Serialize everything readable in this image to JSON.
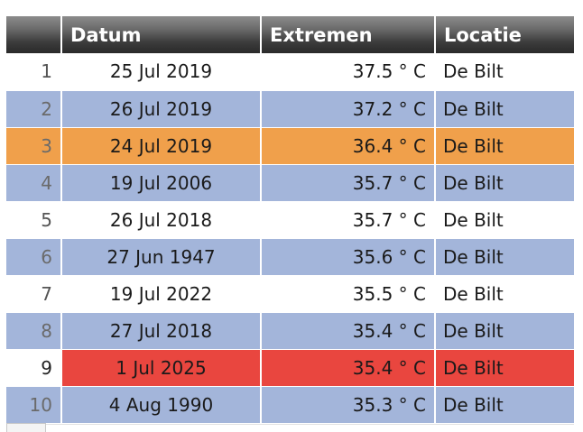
{
  "headers": {
    "num": "",
    "date": "Datum",
    "extreme": "Extremen",
    "location": "Locatie"
  },
  "rows": [
    {
      "n": "1",
      "date": "25 Jul 2019",
      "temp": "37.5 ° C",
      "loc": "De Bilt",
      "style": "white"
    },
    {
      "n": "2",
      "date": "26 Jul 2019",
      "temp": "37.2 ° C",
      "loc": "De Bilt",
      "style": "blue"
    },
    {
      "n": "3",
      "date": "24 Jul 2019",
      "temp": "36.4 ° C",
      "loc": "De Bilt",
      "style": "orange"
    },
    {
      "n": "4",
      "date": "19 Jul 2006",
      "temp": "35.7 ° C",
      "loc": "De Bilt",
      "style": "blue"
    },
    {
      "n": "5",
      "date": "26 Jul 2018",
      "temp": "35.7 ° C",
      "loc": "De Bilt",
      "style": "white"
    },
    {
      "n": "6",
      "date": "27 Jun 1947",
      "temp": "35.6 ° C",
      "loc": "De Bilt",
      "style": "blue"
    },
    {
      "n": "7",
      "date": "19 Jul 2022",
      "temp": "35.5 ° C",
      "loc": "De Bilt",
      "style": "white"
    },
    {
      "n": "8",
      "date": "27 Jul 2018",
      "temp": "35.4 ° C",
      "loc": "De Bilt",
      "style": "blue"
    },
    {
      "n": "9",
      "date": "1 Jul 2025",
      "temp": "35.4 ° C",
      "loc": "De Bilt",
      "style": "red"
    },
    {
      "n": "10",
      "date": "4 Aug 1990",
      "temp": "35.3 ° C",
      "loc": "De Bilt",
      "style": "blue"
    }
  ],
  "colors": {
    "header": "#3c3c3c",
    "blue": "#a3b5da",
    "orange": "#f0a04b",
    "red": "#e9463f",
    "white": "#ffffff"
  }
}
